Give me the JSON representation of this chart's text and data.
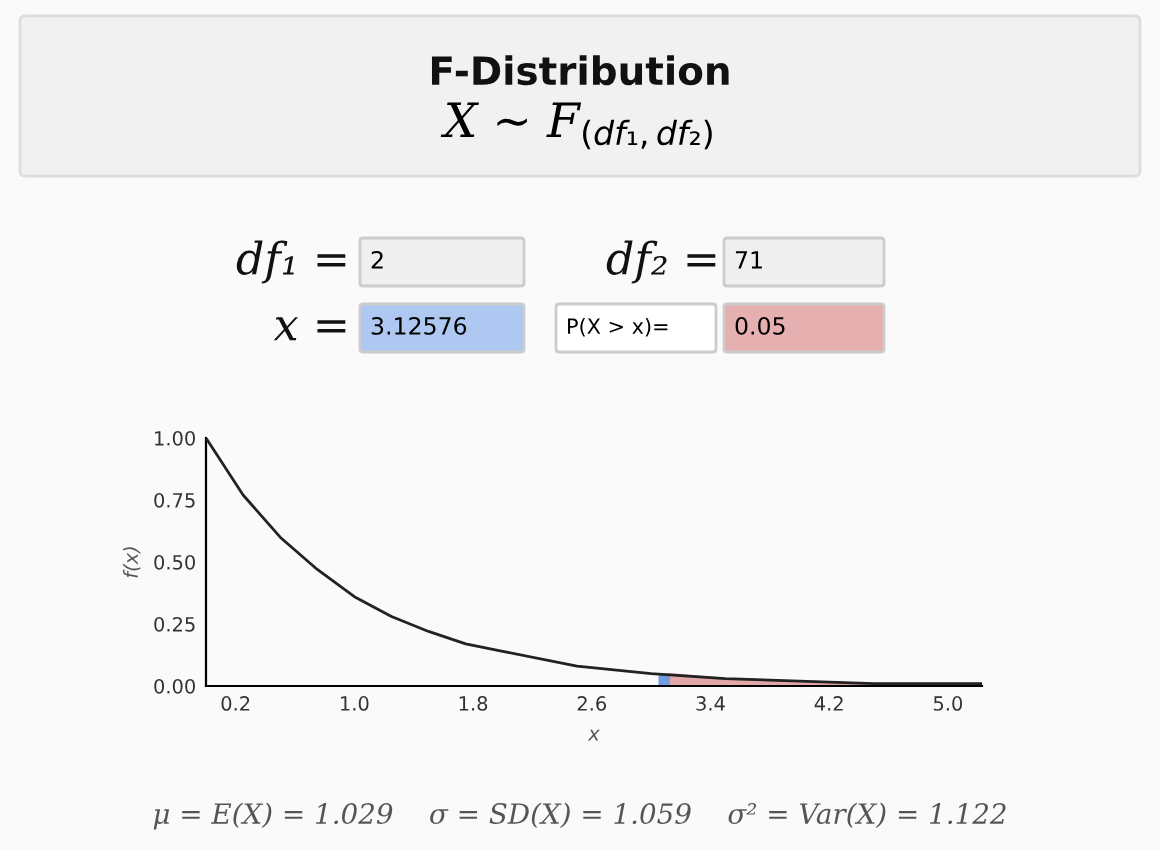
{
  "chart_data": {
    "type": "line",
    "title": "F-Distribution",
    "subtitle": "X ∼ F$_{(df₁,df₂)}$",
    "xlabel": "x",
    "ylabel": "f(x)",
    "annotations": [
      "df₁ =",
      "2",
      "df₂ =",
      "71",
      "x =",
      "3.12576",
      "P(X > x)=",
      "0.05",
      "μ = E(X) = 1.029    σ = SD(X) = 1.059    σ² = Var(X) = 1.122"
    ],
    "series": [
      {
        "color": "#222222",
        "x": [
          0,
          0.25,
          0.5,
          0.75,
          1.0,
          1.25,
          1.5,
          1.75,
          2.0,
          2.5,
          3.0,
          3.5,
          4.0,
          4.5,
          5.0,
          5.23
        ],
        "values": [
          1.0,
          0.77,
          0.6,
          0.47,
          0.36,
          0.28,
          0.22,
          0.17,
          0.14,
          0.08,
          0.05,
          0.03,
          0.02,
          0.01,
          0.01,
          0.01
        ]
      },
      {
        "type": "area",
        "color": "#e3a6a6",
        "x": [
          3.12576,
          3.5,
          4.0,
          4.5,
          5.0,
          5.23
        ],
        "values": [
          0.05,
          0.03,
          0.02,
          0.01,
          0.01,
          0.01
        ]
      }
    ],
    "bands": [
      {
        "axis": "x",
        "from": 3.05,
        "to": 3.12576,
        "color": "#6f9be0"
      }
    ],
    "xlim": [
      0,
      5.23
    ],
    "ylim": [
      0,
      1
    ],
    "xticks": [
      0.2,
      {
        "value": 1,
        "label": "1.0"
      },
      1.8,
      2.6,
      3.4,
      4.2,
      {
        "value": 5,
        "label": "5.0"
      }
    ],
    "yticks": [
      {
        "value": 0,
        "label": "0.00"
      },
      {
        "value": 0.25,
        "label": "0.25"
      },
      {
        "value": 0.5,
        "label": "0.50"
      },
      {
        "value": 0.75,
        "label": "0.75"
      },
      {
        "value": 1,
        "label": "1.00"
      }
    ],
    "grid": false,
    "legend": false
  }
}
